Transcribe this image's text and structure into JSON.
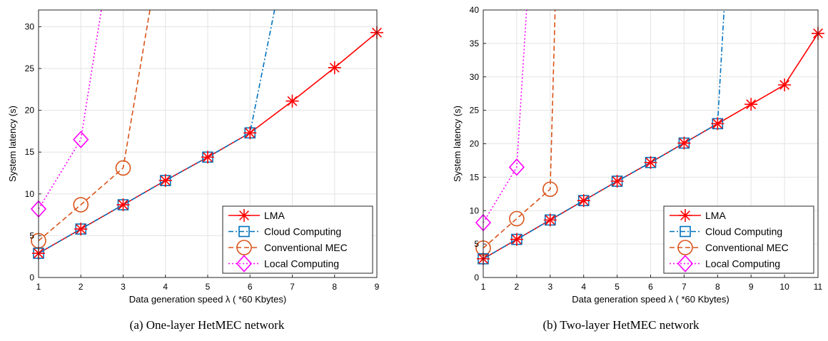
{
  "chart_data": [
    {
      "type": "line",
      "caption": "(a) One-layer HetMEC network",
      "xlabel": "Data generation speed λ ( *60 Kbytes)",
      "ylabel": "System latency (s)",
      "xlim": [
        1,
        9
      ],
      "ylim": [
        0,
        32
      ],
      "xticks": [
        1,
        2,
        3,
        4,
        5,
        6,
        7,
        8,
        9
      ],
      "yticks": [
        0,
        5,
        10,
        15,
        20,
        25,
        30
      ],
      "grid": true,
      "legend_position": "bottom-right",
      "series": [
        {
          "name": "LMA",
          "color": "#ff0000",
          "style": "solid",
          "marker": "asterisk",
          "x": [
            1,
            2,
            3,
            4,
            5,
            6,
            7,
            8,
            9
          ],
          "y": [
            2.9,
            5.8,
            8.7,
            11.6,
            14.4,
            17.3,
            21.1,
            25.1,
            29.3
          ]
        },
        {
          "name": "Cloud Computing",
          "color": "#0072bd",
          "style": "dashdot",
          "marker": "square",
          "x": [
            1,
            2,
            3,
            4,
            5,
            6,
            6.6
          ],
          "y": [
            2.9,
            5.8,
            8.7,
            11.6,
            14.4,
            17.3,
            32.5
          ],
          "markers_at": [
            1,
            2,
            3,
            4,
            5,
            6
          ]
        },
        {
          "name": "Conventional MEC",
          "color": "#d95319",
          "style": "dashed",
          "marker": "circle",
          "x": [
            1,
            2,
            3,
            3.65
          ],
          "y": [
            4.4,
            8.7,
            13.1,
            32.5
          ],
          "markers_at": [
            1,
            2,
            3
          ]
        },
        {
          "name": "Local Computing",
          "color": "#ff00ff",
          "style": "dotted",
          "marker": "diamond",
          "x": [
            1,
            2,
            2.5
          ],
          "y": [
            8.2,
            16.5,
            32.5
          ],
          "markers_at": [
            1,
            2
          ]
        }
      ]
    },
    {
      "type": "line",
      "caption": "(b) Two-layer HetMEC network",
      "xlabel": "Data generation speed λ ( *60 Kbytes)",
      "ylabel": "System latency (s)",
      "xlim": [
        1,
        11
      ],
      "ylim": [
        0,
        40
      ],
      "xticks": [
        1,
        2,
        3,
        4,
        5,
        6,
        7,
        8,
        9,
        10,
        11
      ],
      "yticks": [
        0,
        5,
        10,
        15,
        20,
        25,
        30,
        35,
        40
      ],
      "grid": true,
      "legend_position": "bottom-right",
      "series": [
        {
          "name": "LMA",
          "color": "#ff0000",
          "style": "solid",
          "marker": "asterisk",
          "x": [
            1,
            2,
            3,
            4,
            5,
            6,
            7,
            8,
            9,
            10,
            11
          ],
          "y": [
            2.8,
            5.7,
            8.6,
            11.5,
            14.4,
            17.2,
            20.1,
            23.0,
            25.9,
            28.8,
            36.5
          ]
        },
        {
          "name": "Cloud Computing",
          "color": "#0072bd",
          "style": "dashdot",
          "marker": "square",
          "x": [
            1,
            2,
            3,
            4,
            5,
            6,
            7,
            8,
            8.2
          ],
          "y": [
            2.8,
            5.7,
            8.6,
            11.5,
            14.4,
            17.2,
            20.1,
            23.0,
            40.5
          ],
          "markers_at": [
            1,
            2,
            3,
            4,
            5,
            6,
            7,
            8
          ]
        },
        {
          "name": "Conventional MEC",
          "color": "#d95319",
          "style": "dashed",
          "marker": "circle",
          "x": [
            1,
            2,
            3,
            3.15
          ],
          "y": [
            4.4,
            8.8,
            13.2,
            40.5
          ],
          "markers_at": [
            1,
            2,
            3
          ]
        },
        {
          "name": "Local Computing",
          "color": "#ff00ff",
          "style": "dotted",
          "marker": "diamond",
          "x": [
            1,
            2,
            2.3
          ],
          "y": [
            8.2,
            16.5,
            40.5
          ],
          "markers_at": [
            1,
            2
          ]
        }
      ]
    }
  ]
}
